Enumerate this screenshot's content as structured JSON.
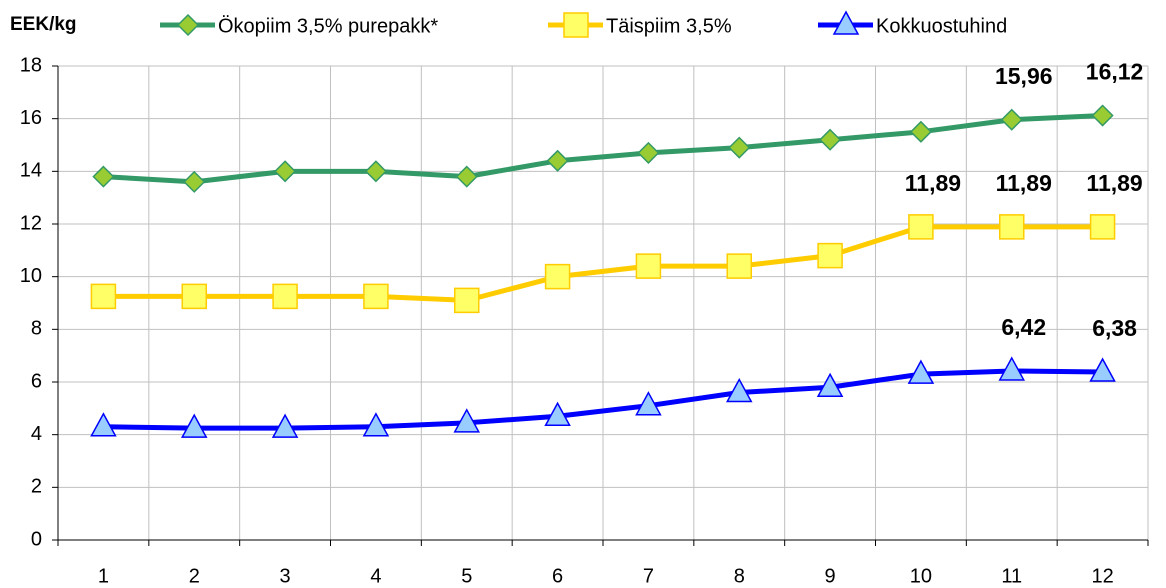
{
  "chart_data": {
    "type": "line",
    "y_label": "EEK/kg",
    "categories": [
      "1",
      "2",
      "3",
      "4",
      "5",
      "6",
      "7",
      "8",
      "9",
      "10",
      "11",
      "12"
    ],
    "series": [
      {
        "name": "Ökopiim 3,5% purepakk*",
        "color": "#339966",
        "marker_color": "#99cc33",
        "marker": "diamond",
        "values": [
          13.8,
          13.6,
          14.0,
          14.0,
          13.8,
          14.4,
          14.7,
          14.9,
          15.2,
          15.5,
          15.96,
          16.12
        ],
        "value_labels": [
          null,
          null,
          null,
          null,
          null,
          null,
          null,
          null,
          null,
          null,
          "15,96",
          "16,12"
        ]
      },
      {
        "name": "Täispiim 3,5%",
        "color": "#ffcc00",
        "marker_color": "#ffff66",
        "marker": "square",
        "values": [
          9.25,
          9.25,
          9.25,
          9.25,
          9.1,
          10.0,
          10.4,
          10.4,
          10.8,
          11.89,
          11.89,
          11.89
        ],
        "value_labels": [
          null,
          null,
          null,
          null,
          null,
          null,
          null,
          null,
          null,
          "11,89",
          "11,89",
          "11,89"
        ]
      },
      {
        "name": "Kokkuostuhind",
        "color": "#0000ff",
        "marker_color": "#99ccff",
        "marker": "triangle",
        "values": [
          4.3,
          4.25,
          4.25,
          4.3,
          4.45,
          4.7,
          5.1,
          5.6,
          5.8,
          6.3,
          6.42,
          6.38
        ],
        "value_labels": [
          null,
          null,
          null,
          null,
          null,
          null,
          null,
          null,
          null,
          null,
          "6,42",
          "6,38"
        ]
      }
    ],
    "ylim": [
      0,
      18
    ],
    "yticks": [
      0,
      2,
      4,
      6,
      8,
      10,
      12,
      14,
      16,
      18
    ],
    "grid": true
  }
}
